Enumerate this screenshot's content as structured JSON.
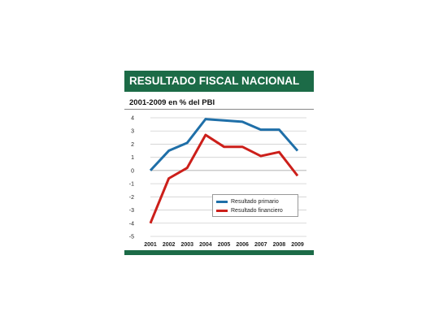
{
  "title": "RESULTADO FISCAL NACIONAL",
  "subtitle": "2001-2009 en % del PBI",
  "colors": {
    "header": "#1c6b47",
    "primario": "#1f6fa8",
    "financiero": "#cc1f1a"
  },
  "chart_data": {
    "type": "line",
    "x": [
      "2001",
      "2002",
      "2003",
      "2004",
      "2005",
      "2006",
      "2007",
      "2008",
      "2009"
    ],
    "ylim": [
      -5,
      4
    ],
    "yticks": [
      4,
      3,
      2,
      1,
      0,
      -1,
      -2,
      -3,
      -4,
      -5
    ],
    "grid": true,
    "legend_position": "lower-right",
    "series": [
      {
        "name": "Resultado primario",
        "color": "#1f6fa8",
        "values": [
          0,
          1.5,
          2.1,
          3.9,
          3.8,
          3.7,
          3.1,
          3.1,
          1.5
        ]
      },
      {
        "name": "Resultado financiero",
        "color": "#cc1f1a",
        "values": [
          -4.0,
          -0.6,
          0.2,
          2.7,
          1.8,
          1.8,
          1.1,
          1.4,
          -0.4
        ]
      }
    ]
  }
}
